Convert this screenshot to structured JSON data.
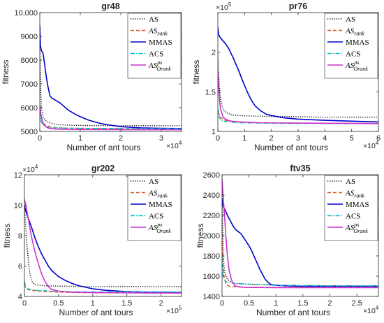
{
  "chart_data": [
    {
      "type": "line",
      "title": "gr48",
      "xlabel": "Number of ant tours",
      "ylabel": "fitness",
      "x_multiplier": "×10",
      "x_multiplier_exp": "4",
      "y_multiplier": "",
      "y_multiplier_exp": "",
      "xlim": [
        0,
        35000
      ],
      "ylim": [
        5000,
        10000
      ],
      "xticks": [
        0,
        10000,
        20000,
        30000
      ],
      "xtick_labels": [
        "0",
        "1",
        "2",
        "3"
      ],
      "yticks": [
        5000,
        6000,
        7000,
        8000,
        9000,
        10000
      ],
      "ytick_labels": [
        "5000",
        "6000",
        "7000",
        "8000",
        "9000",
        "10,000"
      ],
      "legend_position": "top-right",
      "series": [
        {
          "name": "AS",
          "style": "dotted",
          "color": "#000000",
          "x": [
            0,
            200,
            400,
            700,
            1000,
            1500,
            2000,
            3000,
            4000,
            5000,
            8000,
            12000,
            20000,
            35000
          ],
          "y": [
            9000,
            6800,
            6000,
            5700,
            5550,
            5450,
            5400,
            5340,
            5300,
            5280,
            5260,
            5250,
            5240,
            5240
          ]
        },
        {
          "name": "AS",
          "sub": "rank",
          "style": "dashed",
          "color": "#d95319",
          "x": [
            0,
            300,
            600,
            1000,
            1500,
            2500,
            4000,
            6000,
            10000,
            20000,
            35000
          ],
          "y": [
            5800,
            5600,
            5420,
            5330,
            5250,
            5200,
            5160,
            5140,
            5130,
            5120,
            5120
          ]
        },
        {
          "name": "MMAS",
          "style": "solid",
          "color": "#0000cc",
          "x": [
            0,
            150,
            400,
            800,
            1200,
            1600,
            2000,
            2500,
            3000,
            4000,
            5000,
            6000,
            7000,
            8000,
            9000,
            10000,
            12000,
            14000,
            16000,
            18000,
            20000,
            25000,
            30000,
            35000
          ],
          "y": [
            9450,
            8600,
            8400,
            8300,
            7800,
            7300,
            6900,
            6500,
            6400,
            6300,
            6200,
            6050,
            5900,
            5800,
            5700,
            5620,
            5480,
            5380,
            5300,
            5250,
            5200,
            5150,
            5130,
            5120
          ]
        },
        {
          "name": "ACS",
          "style": "dashdot",
          "color": "#00bfd0",
          "x": [
            0,
            200,
            400,
            700,
            1000,
            1500,
            2500,
            4000,
            6000,
            10000,
            20000,
            35000
          ],
          "y": [
            5800,
            5500,
            5400,
            5300,
            5250,
            5200,
            5170,
            5150,
            5140,
            5130,
            5120,
            5120
          ]
        },
        {
          "name": "AS",
          "sub": "Orank",
          "sup": "ps",
          "style": "solid",
          "color": "#cc33cc",
          "x": [
            0,
            300,
            600,
            1000,
            1500,
            2000,
            3000,
            4000,
            6000,
            10000,
            20000,
            35000
          ],
          "y": [
            6100,
            5700,
            5450,
            5300,
            5200,
            5150,
            5120,
            5100,
            5090,
            5080,
            5070,
            5070
          ]
        }
      ]
    },
    {
      "type": "line",
      "title": "pr76",
      "xlabel": "Number of ant tours",
      "ylabel": "fitness",
      "x_multiplier": "×10",
      "x_multiplier_exp": "4",
      "y_multiplier": "×10",
      "y_multiplier_exp": "5",
      "xlim": [
        0,
        60000
      ],
      "ylim": [
        100000,
        250000
      ],
      "xticks": [
        0,
        10000,
        20000,
        30000,
        40000,
        50000,
        60000
      ],
      "xtick_labels": [
        "0",
        "1",
        "2",
        "3",
        "4",
        "5",
        "6"
      ],
      "yticks": [
        100000,
        150000,
        200000
      ],
      "ytick_labels": [
        "1",
        "1.5",
        "2"
      ],
      "legend_position": "top-right",
      "series": [
        {
          "name": "AS",
          "style": "dotted",
          "color": "#000000",
          "x": [
            0,
            500,
            1000,
            2000,
            3000,
            5000,
            8000,
            12000,
            20000,
            40000,
            60000
          ],
          "y": [
            200000,
            160000,
            140000,
            128000,
            124000,
            121000,
            120000,
            119500,
            119000,
            118000,
            118000
          ]
        },
        {
          "name": "AS",
          "sub": "rank",
          "style": "dashed",
          "color": "#d95319",
          "x": [
            0,
            1000,
            2000,
            4000,
            8000,
            15000,
            30000,
            60000
          ],
          "y": [
            125000,
            118000,
            115000,
            113000,
            112000,
            111000,
            110500,
            110000
          ]
        },
        {
          "name": "MMAS",
          "style": "solid",
          "color": "#0000cc",
          "x": [
            0,
            300,
            1000,
            2000,
            3000,
            4000,
            5000,
            6000,
            7000,
            8000,
            9000,
            10000,
            11000,
            12000,
            13000,
            14000,
            16000,
            18000,
            20000,
            25000,
            30000,
            40000,
            50000,
            60000
          ],
          "y": [
            232000,
            222000,
            218000,
            214000,
            210000,
            205000,
            198000,
            191000,
            183000,
            175000,
            166000,
            158000,
            150000,
            143000,
            137000,
            132000,
            126000,
            122000,
            120000,
            117000,
            115500,
            114000,
            113000,
            112000
          ]
        },
        {
          "name": "ACS",
          "style": "dashdot",
          "color": "#00bfd0",
          "x": [
            0,
            500,
            1000,
            2000,
            4000,
            8000,
            15000,
            30000,
            60000
          ],
          "y": [
            130000,
            118000,
            115000,
            113000,
            112000,
            111000,
            110500,
            110000,
            110000
          ]
        },
        {
          "name": "AS",
          "sub": "Orank",
          "sup": "ps",
          "style": "solid",
          "color": "#cc33cc",
          "x": [
            0,
            500,
            1000,
            2000,
            3000,
            5000,
            8000,
            15000,
            30000,
            60000
          ],
          "y": [
            175000,
            145000,
            128000,
            118000,
            115000,
            113000,
            112000,
            111000,
            110500,
            110000
          ]
        }
      ]
    },
    {
      "type": "line",
      "title": "gr202",
      "xlabel": "Number of ant tours",
      "ylabel": "fitness",
      "x_multiplier": "×10",
      "x_multiplier_exp": "5",
      "y_multiplier": "×10",
      "y_multiplier_exp": "4",
      "xlim": [
        0,
        230000
      ],
      "ylim": [
        40000,
        120000
      ],
      "xticks": [
        0,
        50000,
        100000,
        150000,
        200000
      ],
      "xtick_labels": [
        "0",
        "0.5",
        "1",
        "1.5",
        "2"
      ],
      "yticks": [
        40000,
        60000,
        80000,
        100000,
        120000
      ],
      "ytick_labels": [
        "4",
        "6",
        "8",
        "10",
        "12"
      ],
      "legend_position": "top-right",
      "series": [
        {
          "name": "AS",
          "style": "dotted",
          "color": "#000000",
          "x": [
            0,
            1000,
            2500,
            4000,
            6000,
            8000,
            10000,
            12000,
            15000,
            20000,
            30000,
            50000,
            100000,
            230000
          ],
          "y": [
            98000,
            92000,
            82000,
            72000,
            62000,
            55000,
            51000,
            49000,
            48000,
            47500,
            47000,
            46800,
            46500,
            46500
          ]
        },
        {
          "name": "AS",
          "sub": "rank",
          "style": "dashed",
          "color": "#d95319",
          "x": [
            0,
            2000,
            5000,
            10000,
            20000,
            40000,
            80000,
            230000
          ],
          "y": [
            48000,
            45500,
            44500,
            44000,
            43500,
            43000,
            42500,
            42500
          ]
        },
        {
          "name": "MMAS",
          "style": "solid",
          "color": "#0000cc",
          "x": [
            0,
            2000,
            5000,
            10000,
            15000,
            20000,
            25000,
            30000,
            35000,
            40000,
            50000,
            60000,
            70000,
            80000,
            90000,
            100000,
            120000,
            150000,
            180000,
            230000
          ],
          "y": [
            100000,
            96000,
            92000,
            86000,
            79000,
            73000,
            68000,
            64000,
            60000,
            57000,
            53000,
            50500,
            48500,
            47000,
            46000,
            45000,
            44000,
            43200,
            42800,
            42500
          ]
        },
        {
          "name": "ACS",
          "style": "dashdot",
          "color": "#00bfd0",
          "x": [
            0,
            2000,
            5000,
            10000,
            20000,
            40000,
            80000,
            230000
          ],
          "y": [
            50000,
            46000,
            45000,
            44500,
            44000,
            43500,
            43000,
            43000
          ]
        },
        {
          "name": "AS",
          "sub": "Orank",
          "sup": "ps",
          "style": "solid",
          "color": "#cc33cc",
          "x": [
            0,
            3000,
            6000,
            10000,
            15000,
            20000,
            25000,
            30000,
            35000,
            40000,
            50000,
            70000,
            100000,
            150000,
            230000
          ],
          "y": [
            104000,
            98000,
            90000,
            80000,
            70000,
            62000,
            55000,
            50000,
            46500,
            44500,
            43500,
            42800,
            42500,
            42300,
            42200
          ]
        }
      ]
    },
    {
      "type": "line",
      "title": "ftv35",
      "xlabel": "Number of ant tours",
      "ylabel": "fitness",
      "x_multiplier": "×10",
      "x_multiplier_exp": "4",
      "y_multiplier": "",
      "y_multiplier_exp": "",
      "xlim": [
        0,
        29000
      ],
      "ylim": [
        1400,
        2600
      ],
      "xticks": [
        0,
        5000,
        10000,
        15000,
        20000,
        25000
      ],
      "xtick_labels": [
        "0",
        "0.5",
        "1",
        "1.5",
        "2",
        "2.5"
      ],
      "yticks": [
        1400,
        1600,
        1800,
        2000,
        2200,
        2400,
        2600
      ],
      "ytick_labels": [
        "1400",
        "1600",
        "1800",
        "2000",
        "2200",
        "2400",
        "2600"
      ],
      "legend_position": "top-right",
      "series": [
        {
          "name": "AS",
          "style": "dotted",
          "color": "#000000",
          "x": [
            0,
            100,
            200,
            400,
            600,
            800,
            1000,
            1500,
            2000,
            3000,
            5000,
            8000,
            12000,
            20000,
            29000
          ],
          "y": [
            2500,
            2100,
            1850,
            1680,
            1620,
            1590,
            1570,
            1550,
            1535,
            1525,
            1520,
            1515,
            1510,
            1505,
            1505
          ]
        },
        {
          "name": "AS",
          "sub": "rank",
          "style": "dashed",
          "color": "#d95319",
          "x": [
            0,
            200,
            400,
            700,
            1000,
            1500,
            2500,
            4000,
            6000,
            10000,
            20000,
            29000
          ],
          "y": [
            2000,
            1700,
            1580,
            1530,
            1510,
            1500,
            1495,
            1490,
            1490,
            1490,
            1490,
            1490
          ]
        },
        {
          "name": "MMAS",
          "style": "solid",
          "color": "#0000cc",
          "x": [
            0,
            100,
            300,
            600,
            1000,
            1500,
            2000,
            2500,
            3000,
            3500,
            4000,
            4500,
            5000,
            5500,
            6000,
            6500,
            7000,
            7500,
            8000,
            8500,
            9000,
            10000,
            12000,
            15000,
            20000,
            29000
          ],
          "y": [
            2370,
            2300,
            2280,
            2250,
            2200,
            2150,
            2100,
            2060,
            2040,
            2020,
            1980,
            1940,
            1900,
            1850,
            1790,
            1730,
            1670,
            1620,
            1570,
            1540,
            1520,
            1510,
            1505,
            1500,
            1500,
            1500
          ]
        },
        {
          "name": "ACS",
          "style": "dashdot",
          "color": "#00bfd0",
          "x": [
            0,
            100,
            200,
            400,
            700,
            1000,
            1500,
            2500,
            4000,
            6000,
            10000,
            20000,
            29000
          ],
          "y": [
            1800,
            1650,
            1600,
            1570,
            1550,
            1540,
            1535,
            1530,
            1525,
            1520,
            1510,
            1505,
            1505
          ]
        },
        {
          "name": "AS",
          "sub": "Orank",
          "sup": "ps",
          "style": "solid",
          "color": "#cc33cc",
          "x": [
            0,
            200,
            400,
            700,
            1000,
            1300,
            1600,
            2000,
            2500,
            3000,
            4000,
            6000,
            10000,
            20000,
            29000
          ],
          "y": [
            2560,
            2400,
            2250,
            2000,
            1800,
            1670,
            1590,
            1530,
            1505,
            1495,
            1490,
            1488,
            1487,
            1487,
            1487
          ]
        }
      ]
    }
  ]
}
